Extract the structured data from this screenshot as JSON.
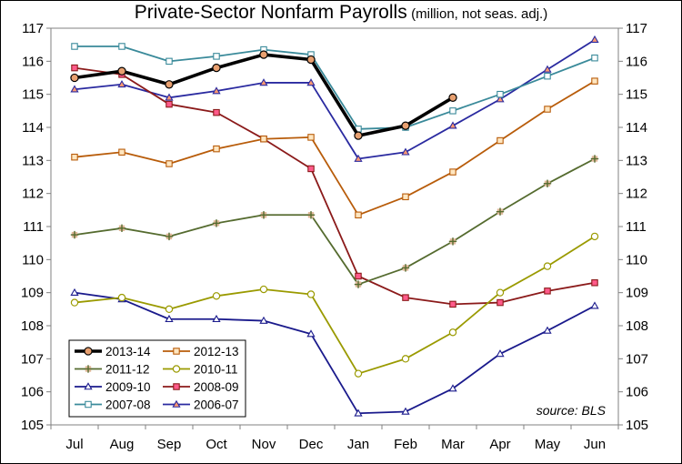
{
  "chart_data": {
    "type": "line",
    "title": "Private-Sector Nonfarm Payrolls",
    "subtitle": "(million, not seas. adj.)",
    "categories": [
      "Jul",
      "Aug",
      "Sep",
      "Oct",
      "Nov",
      "Dec",
      "Jan",
      "Feb",
      "Mar",
      "Apr",
      "May",
      "Jun"
    ],
    "ylim": [
      105,
      117
    ],
    "yticks": [
      105,
      106,
      107,
      108,
      109,
      110,
      111,
      112,
      113,
      114,
      115,
      116,
      117
    ],
    "grid": false,
    "legend_position": "bottom-left",
    "annotation": "source: BLS",
    "series": [
      {
        "name": "2013-14",
        "color": "#000000",
        "marker": "circle",
        "marker_fill": "#e8a070",
        "values": [
          115.5,
          115.7,
          115.3,
          115.8,
          116.2,
          116.05,
          113.75,
          114.05,
          114.9,
          null,
          null,
          null
        ]
      },
      {
        "name": "2012-13",
        "color": "#b85c0a",
        "marker": "square",
        "marker_fill": "#ffe6c0",
        "values": [
          113.1,
          113.25,
          112.9,
          113.35,
          113.65,
          113.7,
          111.35,
          111.9,
          112.65,
          113.6,
          114.55,
          115.4
        ]
      },
      {
        "name": "2011-12",
        "color": "#556b2f",
        "marker": "plus",
        "marker_fill": "#e0b89a",
        "values": [
          110.75,
          110.95,
          110.7,
          111.1,
          111.35,
          111.35,
          109.25,
          109.75,
          110.55,
          111.45,
          112.3,
          113.05
        ]
      },
      {
        "name": "2010-11",
        "color": "#9a9a00",
        "marker": "circle",
        "marker_fill": "#ffffff",
        "values": [
          108.7,
          108.85,
          108.5,
          108.9,
          109.1,
          108.95,
          106.55,
          107.0,
          107.8,
          109.0,
          109.8,
          110.7
        ]
      },
      {
        "name": "2009-10",
        "color": "#1a1a8c",
        "marker": "triangle",
        "marker_fill": "#ffffff",
        "values": [
          109.0,
          108.8,
          108.2,
          108.2,
          108.15,
          107.75,
          105.35,
          105.4,
          106.1,
          107.15,
          107.85,
          108.6
        ]
      },
      {
        "name": "2008-09",
        "color": "#8b1a1a",
        "marker": "square",
        "marker_fill": "#ff5a8a",
        "values": [
          115.8,
          115.6,
          114.7,
          114.45,
          113.65,
          112.75,
          109.5,
          108.85,
          108.65,
          108.7,
          109.05,
          109.3
        ]
      },
      {
        "name": "2007-08",
        "color": "#3a8a9a",
        "marker": "square",
        "marker_fill": "#ffffff",
        "values": [
          116.45,
          116.45,
          116.0,
          116.15,
          116.35,
          116.2,
          113.95,
          114.0,
          114.5,
          115.0,
          115.55,
          116.1
        ]
      },
      {
        "name": "2006-07",
        "color": "#2a2aa0",
        "marker": "triangle",
        "marker_fill": "#ff9a70",
        "values": [
          115.15,
          115.3,
          114.9,
          115.1,
          115.35,
          115.35,
          113.05,
          113.25,
          114.05,
          114.85,
          115.75,
          116.65
        ]
      }
    ]
  }
}
